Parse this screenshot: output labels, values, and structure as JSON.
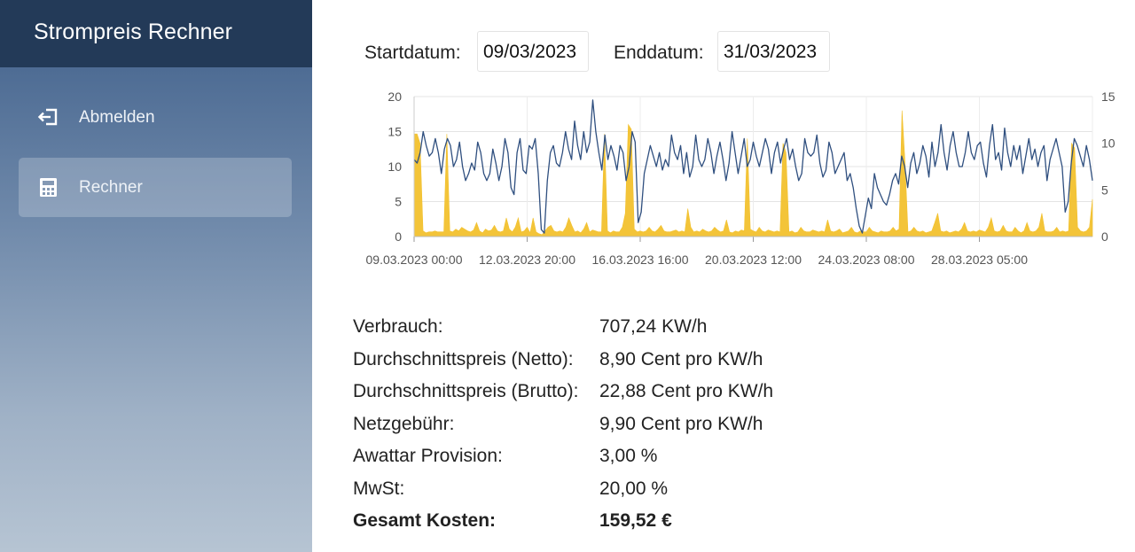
{
  "sidebar": {
    "app_title": "Strompreis Rechner",
    "items": [
      {
        "label": "Abmelden",
        "icon": "logout-icon"
      },
      {
        "label": "Rechner",
        "icon": "calculator-icon",
        "active": true
      }
    ]
  },
  "filters": {
    "start_label": "Startdatum:",
    "start_value": "09/03/2023",
    "end_label": "Enddatum:",
    "end_value": "31/03/2023"
  },
  "chart_data": {
    "type": "line",
    "x_ticks": [
      "09.03.2023 00:00",
      "12.03.2023 20:00",
      "16.03.2023 16:00",
      "20.03.2023 12:00",
      "24.03.2023 08:00",
      "28.03.2023 05:00"
    ],
    "y_left": {
      "ticks": [
        0,
        5,
        10,
        15,
        20
      ],
      "range": [
        0,
        20
      ]
    },
    "y_right": {
      "ticks": [
        0,
        5,
        10,
        15
      ],
      "range": [
        0,
        15
      ]
    },
    "grid": true,
    "colors": {
      "price": "#2f4f7f",
      "consumption": "#f2c12e"
    },
    "series": [
      {
        "axis": "left",
        "kind": "line",
        "values": [
          11,
          10.5,
          12,
          15,
          13,
          11.5,
          12,
          14,
          12,
          9,
          12.5,
          14,
          13,
          10,
          11,
          13.5,
          10,
          8,
          9,
          10.5,
          9.5,
          13.5,
          12,
          9,
          8,
          9,
          12.5,
          10.5,
          8,
          10,
          14,
          12,
          7,
          6,
          12,
          14,
          9.5,
          9,
          13,
          12.5,
          14,
          9,
          1,
          0.5,
          8,
          12,
          13,
          10.5,
          10,
          12,
          15,
          12.5,
          11,
          16.5,
          13,
          11,
          15,
          12,
          13.5,
          19.5,
          15,
          12,
          9.5,
          14.5,
          11,
          13,
          11.5,
          9.5,
          13,
          12,
          8,
          10,
          15,
          13.5,
          2,
          3.5,
          9,
          11,
          13,
          11.5,
          10,
          12,
          9.5,
          11,
          10,
          14.5,
          12,
          11,
          13,
          9,
          12,
          8.5,
          10,
          14.5,
          11,
          10,
          11,
          14,
          12,
          9,
          11.5,
          13.5,
          11,
          8,
          10.5,
          15,
          12,
          9,
          11.5,
          14,
          10,
          11,
          13.5,
          11.5,
          10,
          12,
          14,
          12.5,
          9,
          12,
          13.5,
          10.5,
          12.5,
          14,
          11,
          12.5,
          10,
          8,
          9,
          14,
          12,
          11.5,
          12,
          14.5,
          10.5,
          8.5,
          9.5,
          13.5,
          12,
          9,
          10,
          11,
          12,
          8,
          9,
          7,
          4,
          1.5,
          0.5,
          3,
          5.5,
          4,
          9,
          7,
          6,
          5,
          4.5,
          6,
          8,
          9,
          7.5,
          11.5,
          10,
          7,
          10.5,
          12,
          9,
          10.5,
          13,
          11.5,
          8.5,
          13.5,
          10,
          12,
          16,
          12,
          9.5,
          13,
          15,
          12,
          10,
          10,
          12,
          15,
          12,
          11,
          13,
          13.5,
          10.5,
          8.5,
          13,
          16,
          11,
          12,
          9.5,
          15.5,
          12,
          10,
          13,
          11,
          13,
          9,
          11.5,
          14,
          11,
          12.5,
          10,
          12,
          13,
          8,
          11,
          12.5,
          14,
          12,
          10,
          3.5,
          5,
          10.5,
          14,
          13,
          11.5,
          10,
          13,
          11,
          8
        ]
      },
      {
        "axis": "right",
        "kind": "area",
        "values": [
          11,
          11,
          10,
          0.6,
          0.4,
          0.5,
          0.5,
          0.6,
          0.5,
          0.5,
          0.5,
          11,
          0.6,
          0.5,
          0.8,
          0.6,
          1,
          0.8,
          0.6,
          0.5,
          0.7,
          1.5,
          0.6,
          0.4,
          0.8,
          0.6,
          0.7,
          1.2,
          0.6,
          0.5,
          0.6,
          2,
          0.8,
          0.5,
          1,
          2,
          0.5,
          0.6,
          1,
          0.4,
          2,
          0.5,
          0.3,
          0.2,
          0.6,
          1,
          1.2,
          0.6,
          0.5,
          0.6,
          0.5,
          1,
          2,
          1.2,
          0.5,
          0.6,
          0.4,
          0.8,
          1.5,
          0.5,
          0.7,
          0.6,
          0.5,
          0.5,
          11,
          0.6,
          0.4,
          0.6,
          0.5,
          0.5,
          1,
          2.5,
          12,
          11.5,
          0.8,
          0.5,
          0.6,
          0.5,
          0.6,
          1,
          0.6,
          0.5,
          0.8,
          1.2,
          0.6,
          0.5,
          0.5,
          0.6,
          0.7,
          0.5,
          0.6,
          0.5,
          3,
          1,
          0.5,
          0.6,
          0.5,
          0.8,
          0.6,
          0.5,
          0.6,
          1,
          0.7,
          0.5,
          0.6,
          1.8,
          0.5,
          0.4,
          0.6,
          0.5,
          0.7,
          0.6,
          10.5,
          0.8,
          0.6,
          0.5,
          1,
          0.6,
          0.5,
          0.7,
          0.6,
          0.5,
          0.6,
          0.5,
          10,
          9,
          0.5,
          0.6,
          0.4,
          0.5,
          1,
          0.6,
          0.5,
          0.5,
          0.7,
          0.6,
          0.5,
          0.6,
          0.5,
          1.8,
          0.6,
          0.5,
          0.6,
          0.8,
          0.4,
          0.5,
          0.6,
          1,
          0.5,
          0.4,
          0.6,
          0.5,
          0.5,
          1,
          0.6,
          0.5,
          0.4,
          0.6,
          0.5,
          0.5,
          0.6,
          1,
          0.6,
          0.8,
          13.5,
          8,
          0.5,
          0.6,
          1,
          0.6,
          0.5,
          0.6,
          0.4,
          0.5,
          0.6,
          1.5,
          2.5,
          0.6,
          0.5,
          0.6,
          0.4,
          0.5,
          0.6,
          0.5,
          0.8,
          1.5,
          0.6,
          0.5,
          0.6,
          0.5,
          0.7,
          0.6,
          0.5,
          1,
          2,
          0.6,
          0.5,
          0.6,
          1.2,
          0.6,
          0.5,
          0.5,
          1,
          0.6,
          0.4,
          0.6,
          1.5,
          0.6,
          0.5,
          0.6,
          1,
          2.5,
          0.6,
          0.5,
          0.5,
          0.6,
          1,
          0.5,
          0.6,
          0.5,
          0.6,
          10,
          9.5,
          1,
          0.6,
          0.5,
          0.6,
          1,
          4
        ]
      }
    ]
  },
  "summary": [
    {
      "key": "Verbrauch:",
      "value": "707,24 KW/h"
    },
    {
      "key": "Durchschnittspreis (Netto):",
      "value": "8,90 Cent pro KW/h"
    },
    {
      "key": "Durchschnittspreis (Brutto):",
      "value": "22,88 Cent pro KW/h"
    },
    {
      "key": "Netzgebühr:",
      "value": "9,90 Cent pro KW/h"
    },
    {
      "key": "Awattar Provision:",
      "value": "3,00 %"
    },
    {
      "key": "MwSt:",
      "value": "20,00 %"
    },
    {
      "key": "Gesamt Kosten:",
      "value": "159,52 €",
      "bold": true
    }
  ]
}
